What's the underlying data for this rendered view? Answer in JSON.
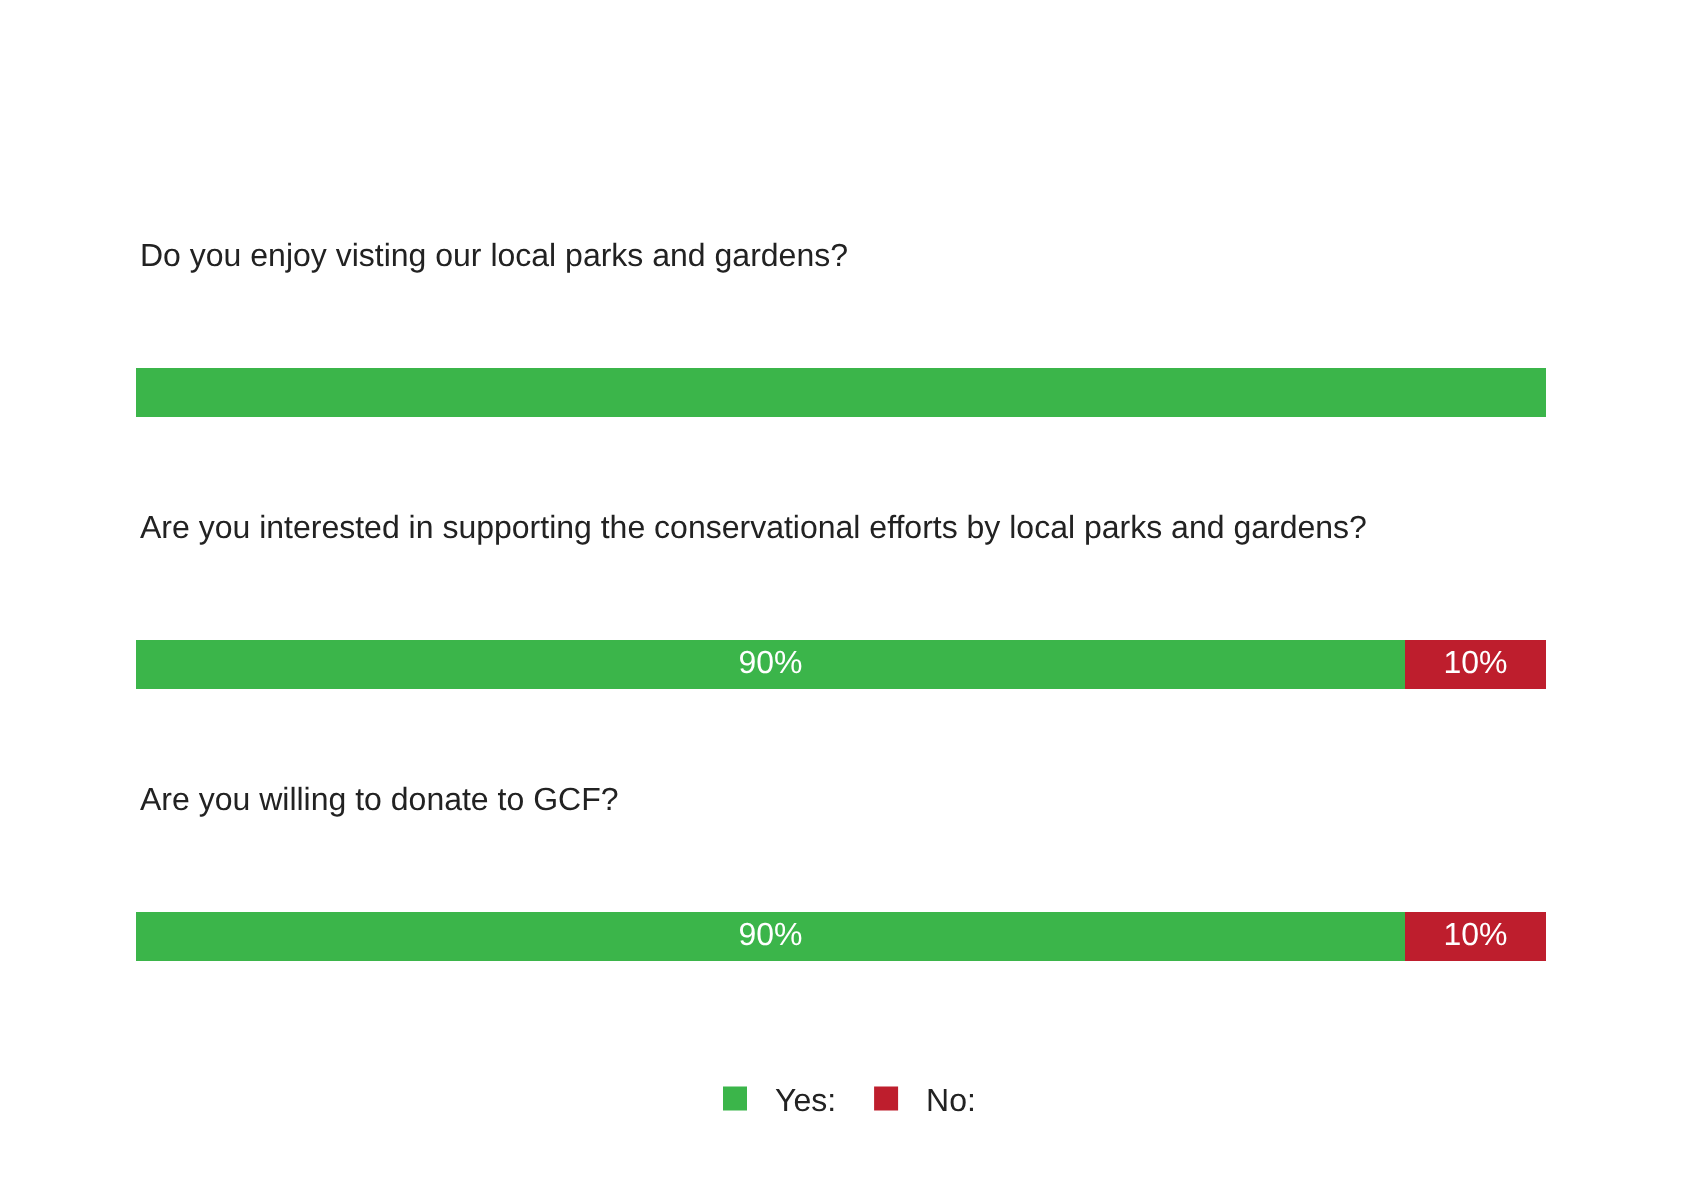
{
  "chart_data": {
    "type": "bar",
    "orientation": "horizontal",
    "stacked": true,
    "categories": [
      "Do you enjoy visting our local parks and gardens?",
      "Are you interested in supporting the conservational efforts by local parks and gardens?",
      "Are you willing to donate to GCF?"
    ],
    "series": [
      {
        "name": "Yes:",
        "color": "#3bb54a",
        "values": [
          100,
          90,
          90
        ],
        "value_labels": [
          null,
          "90%",
          "90%"
        ]
      },
      {
        "name": "No:",
        "color": "#be1e2d",
        "values": [
          0,
          10,
          10
        ],
        "value_labels": [
          null,
          "10%",
          "10%"
        ]
      }
    ],
    "xlim": [
      0,
      100
    ],
    "legend": "bottom"
  }
}
